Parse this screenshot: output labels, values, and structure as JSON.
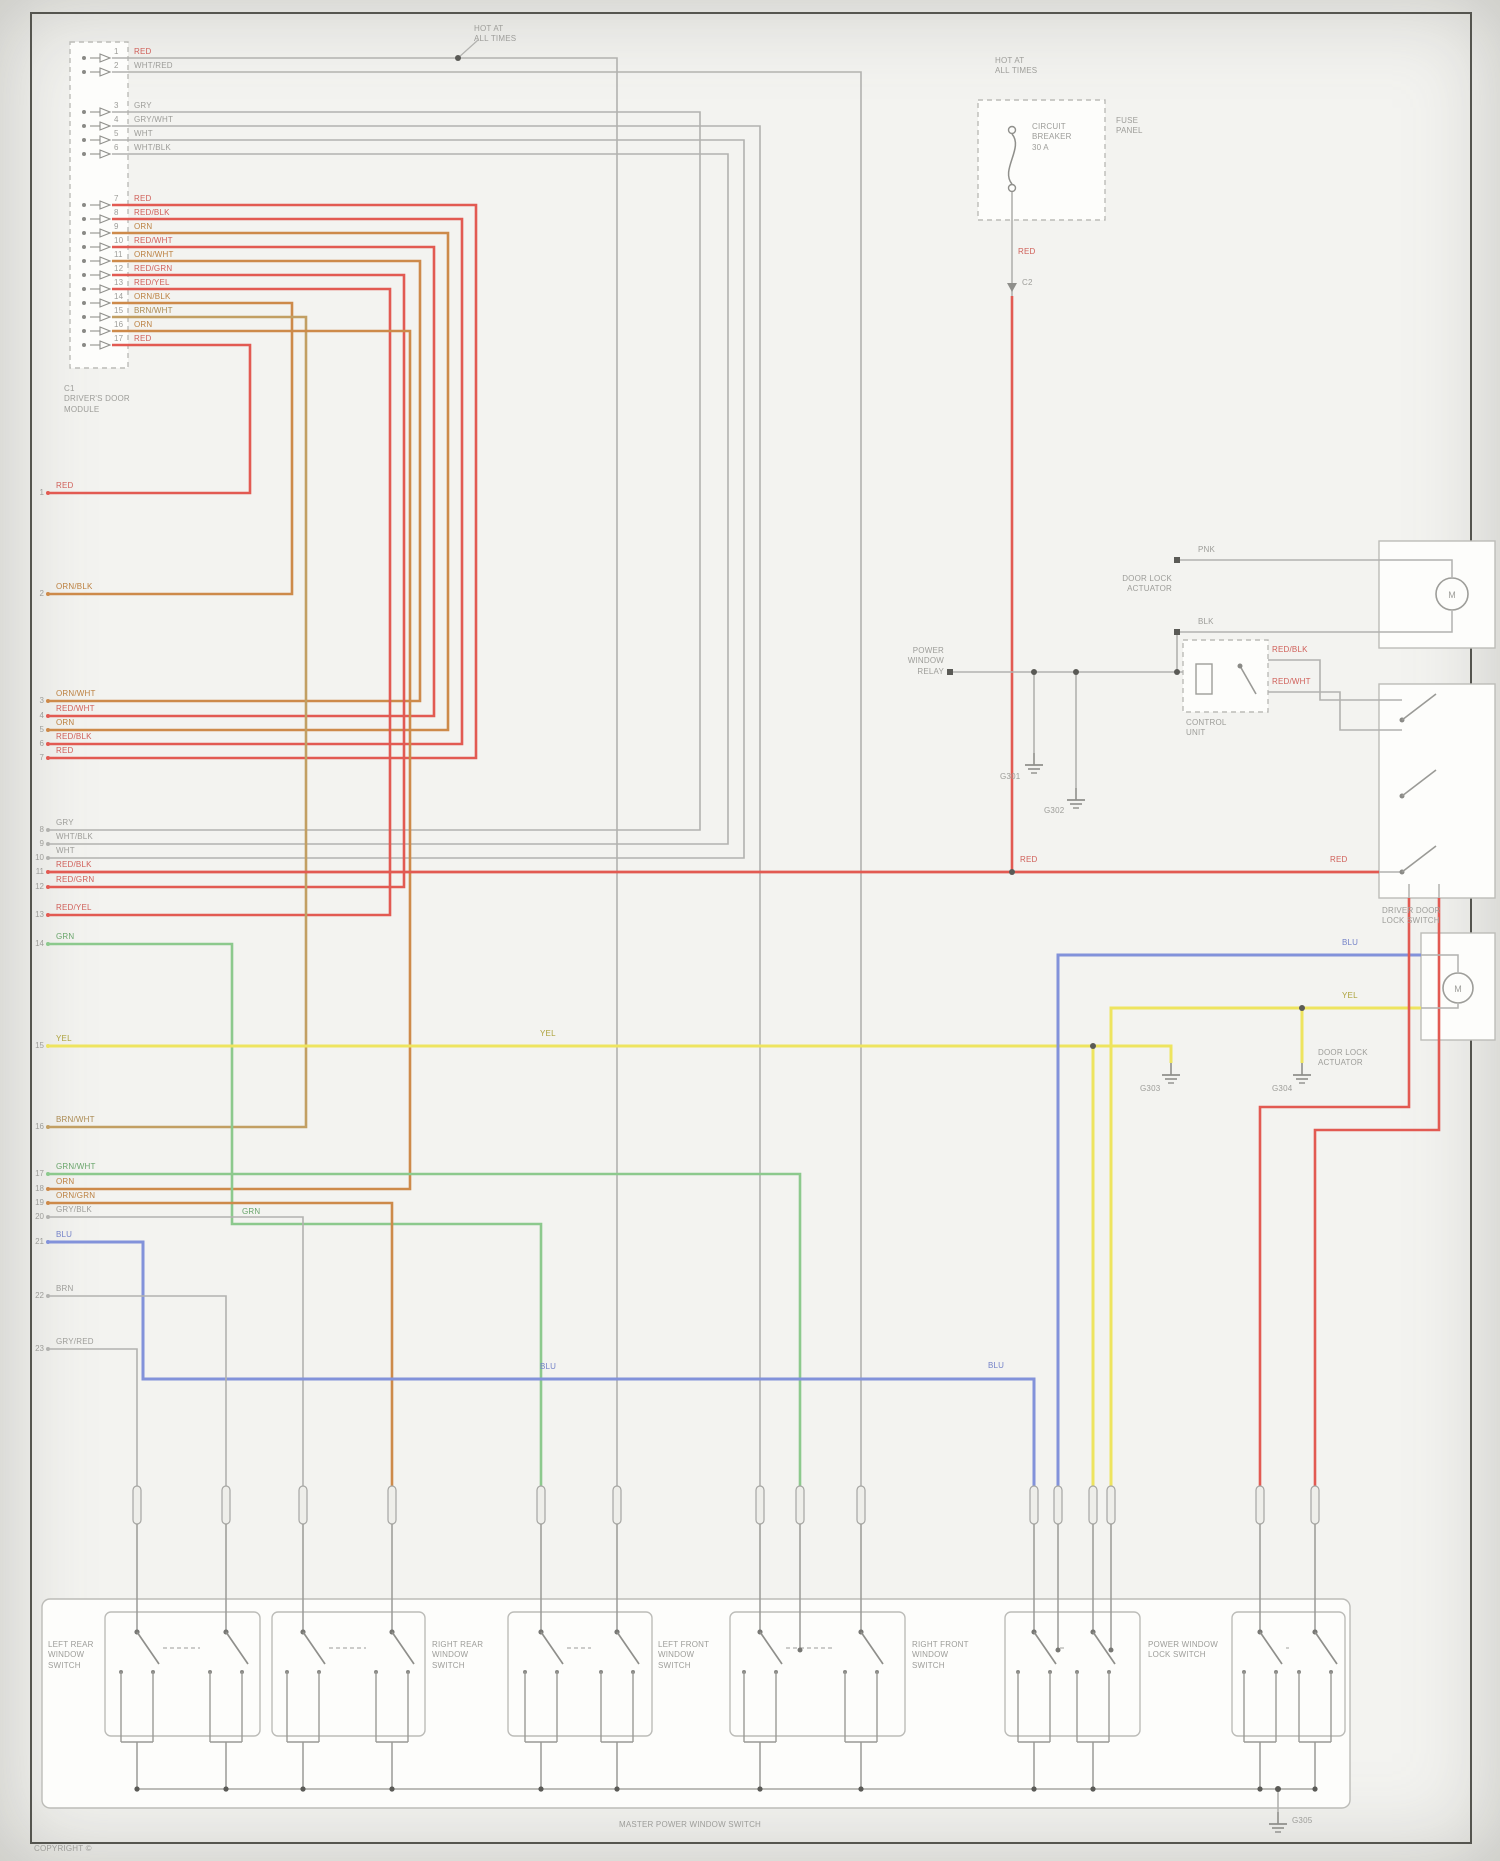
{
  "palette": {
    "gray": "#b2b2af",
    "red": "#e25a52",
    "orange": "#cd8a4a",
    "green": "#8cc98d",
    "yellow": "#eee45f",
    "blue": "#8292da",
    "tan": "#c29f63",
    "border": "#55554f",
    "box_stroke": "#bcbcb8",
    "text": "#9d9d99"
  },
  "labels": {
    "hot1": "HOT AT\nALL TIMES",
    "hot2": "HOT AT\nALL TIMES",
    "breaker": "CIRCUIT\nBREAKER\n30 A",
    "fuse_panel": "FUSE\nPANEL",
    "connector": "C1\nDRIVER'S DOOR\nMODULE",
    "relay": "POWER\nWINDOW\nRELAY",
    "control": "CONTROL\nUNIT",
    "actuator_top": "DOOR LOCK\nACTUATOR",
    "switch_box": "DRIVER DOOR\nLOCK SWITCH",
    "actuator_bottom": "DOOR LOCK\nACTUATOR",
    "master": "MASTER POWER WINDOW SWITCH",
    "c2": "C2"
  },
  "grounds": {
    "a": "G301",
    "b": "G302",
    "c": "G303",
    "d": "G304",
    "e": "G305"
  },
  "connector": {
    "upper_pins": [
      "1",
      "2",
      "3",
      "4",
      "5",
      "6"
    ],
    "upper_codes": [
      "RED",
      "WHT/RED",
      "GRY",
      "GRY/WHT",
      "WHT",
      "WHT/BLK"
    ],
    "lower_pins": [
      "7",
      "8",
      "9",
      "10",
      "11",
      "12",
      "13",
      "14",
      "15",
      "16",
      "17"
    ],
    "lower_codes": [
      "RED",
      "RED/BLK",
      "ORN",
      "RED/WHT",
      "ORN/WHT",
      "RED/GRN",
      "RED/YEL",
      "ORN/BLK",
      "BRN/WHT",
      "ORN",
      "RED"
    ]
  },
  "stubs": [
    {
      "n": "1",
      "code": "RED",
      "color": "red"
    },
    {
      "n": "2",
      "code": "ORN/BLK",
      "color": "orange"
    },
    {
      "n": "3",
      "code": "ORN/WHT",
      "color": "orange"
    },
    {
      "n": "4",
      "code": "RED/WHT",
      "color": "red"
    },
    {
      "n": "5",
      "code": "ORN",
      "color": "orange"
    },
    {
      "n": "6",
      "code": "RED/BLK",
      "color": "red"
    },
    {
      "n": "7",
      "code": "RED",
      "color": "red"
    },
    {
      "n": "8",
      "code": "GRY",
      "color": "gray"
    },
    {
      "n": "9",
      "code": "WHT/BLK",
      "color": "gray"
    },
    {
      "n": "10",
      "code": "WHT",
      "color": "gray"
    },
    {
      "n": "11",
      "code": "RED/BLK",
      "color": "red"
    },
    {
      "n": "12",
      "code": "RED/GRN",
      "color": "red"
    },
    {
      "n": "13",
      "code": "RED/YEL",
      "color": "red"
    },
    {
      "n": "14",
      "code": "GRN",
      "color": "green"
    },
    {
      "n": "15",
      "code": "YEL",
      "color": "yellow"
    },
    {
      "n": "16",
      "code": "BRN/WHT",
      "color": "tan"
    },
    {
      "n": "17",
      "code": "GRN/WHT",
      "color": "green"
    },
    {
      "n": "18",
      "code": "ORN",
      "color": "orange"
    },
    {
      "n": "19",
      "code": "ORN/GRN",
      "color": "orange"
    },
    {
      "n": "20",
      "code": "GRY/BLK",
      "color": "gray"
    },
    {
      "n": "21",
      "code": "BLU",
      "color": "blue"
    },
    {
      "n": "22",
      "code": "BRN",
      "color": "gray"
    },
    {
      "n": "23",
      "code": "GRY/RED",
      "color": "gray"
    }
  ],
  "right": {
    "motor_glyph": "M",
    "codes": {
      "red_fuse": "RED",
      "red_mid1": "RED",
      "red_mid2": "RED",
      "blu_left": "BLU",
      "blu_mid": "BLU",
      "blu_right": "BLU",
      "yel_mid": "YEL",
      "yel_right": "YEL",
      "grn_mid": "GRN",
      "pnk": "PNK",
      "blk": "BLK",
      "redblk2": "RED/BLK",
      "redwht2": "RED/WHT"
    }
  },
  "bottom": {
    "groups": [
      "LEFT REAR\nWINDOW\nSWITCH",
      "RIGHT REAR\nWINDOW\nSWITCH",
      "LEFT FRONT\nWINDOW\nSWITCH",
      "RIGHT FRONT\nWINDOW\nSWITCH",
      "POWER WINDOW\nLOCK SWITCH"
    ]
  },
  "footer": {
    "copyright": "Copyright ©"
  }
}
